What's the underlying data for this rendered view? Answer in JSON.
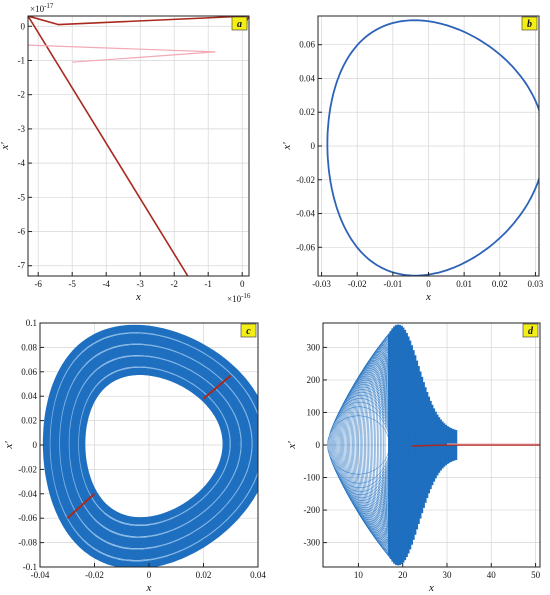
{
  "chart_data": [
    {
      "panel": "a",
      "type": "line",
      "xlabel": "x",
      "ylabel": "x'",
      "x_multiplier": "×10",
      "x_multiplier_exp": "-16",
      "y_multiplier": "×10",
      "y_multiplier_exp": "-17",
      "xlim": [
        -6.3,
        0.2
      ],
      "ylim": [
        -7.3,
        0.3
      ],
      "xticks": [
        -6,
        -5,
        -4,
        -3,
        -2,
        -1,
        0
      ],
      "yticks": [
        0,
        -1,
        -2,
        -3,
        -4,
        -5,
        -6,
        -7
      ],
      "xtick_labels": [
        "-6",
        "-5",
        "-4",
        "-3",
        "-2",
        "-1",
        "0"
      ],
      "ytick_labels": [
        "0",
        "-1",
        "-2",
        "-3",
        "-4",
        "-5",
        "-6",
        "-7"
      ],
      "grid": true,
      "series": [
        {
          "color": "#a82a1e",
          "points": [
            [
              -6.3,
              0.3
            ],
            [
              -1.6,
              -7.3
            ]
          ]
        },
        {
          "color": "#a82a1e",
          "points": [
            [
              -6.3,
              0.3
            ],
            [
              -5.4,
              0.05
            ],
            [
              0.2,
              0.3
            ],
            [
              0.05,
              0.0
            ],
            [
              -0.25,
              0.1
            ],
            [
              0.15,
              0.1
            ]
          ]
        },
        {
          "color": "#f3a9b6",
          "points": [
            [
              -6.3,
              -0.55
            ],
            [
              -0.8,
              -0.75
            ],
            [
              -5.0,
              -1.05
            ]
          ]
        }
      ]
    },
    {
      "panel": "b",
      "type": "line",
      "xlabel": "x",
      "ylabel": "x'",
      "xlim": [
        -0.031,
        0.031
      ],
      "ylim": [
        -0.077,
        0.077
      ],
      "xticks": [
        -0.03,
        -0.02,
        -0.01,
        0,
        0.01,
        0.02,
        0.03
      ],
      "yticks": [
        -0.06,
        -0.04,
        -0.02,
        0,
        0.02,
        0.04,
        0.06
      ],
      "xtick_labels": [
        "-0.03",
        "-0.02",
        "-0.01",
        "0",
        "0.01",
        "0.02",
        "0.03"
      ],
      "ytick_labels": [
        "-0.06",
        "-0.04",
        "-0.02",
        "0",
        "0.02",
        "0.04",
        "0.06"
      ],
      "grid": true,
      "series": [
        {
          "color": "#2d62b8",
          "shape": "closed-orbit",
          "x_amplitude": 0.0305,
          "y_amplitude": 0.0755
        }
      ]
    },
    {
      "panel": "c",
      "type": "line",
      "xlabel": "x",
      "ylabel": "x'",
      "xlim": [
        -0.04,
        0.04
      ],
      "ylim": [
        -0.1,
        0.1
      ],
      "xticks": [
        -0.04,
        -0.02,
        0,
        0.02,
        0.04
      ],
      "yticks": [
        0.1,
        0.08,
        0.06,
        0.04,
        0.02,
        0,
        -0.02,
        -0.04,
        -0.06,
        -0.08,
        -0.1
      ],
      "xtick_labels": [
        "-0.04",
        "-0.02",
        "0",
        "0.02",
        "0.04"
      ],
      "ytick_labels": [
        "0.1",
        "0.08",
        "0.06",
        "0.04",
        "0.02",
        "0",
        "-0.02",
        "-0.04",
        "-0.06",
        "-0.08",
        "-0.1"
      ],
      "grid": true,
      "series": [
        {
          "color": "#1f6fc0",
          "shape": "thick-orbit-band",
          "inner_x": 0.026,
          "inner_y": 0.06,
          "outer_x": 0.041,
          "outer_y": 0.098
        },
        {
          "color": "#a82a1e",
          "shape": "cross-section",
          "points": [
            [
              0.02,
              0.038
            ],
            [
              0.03,
              0.057
            ]
          ]
        },
        {
          "color": "#a82a1e",
          "shape": "cross-section",
          "points": [
            [
              -0.02,
              -0.04
            ],
            [
              -0.03,
              -0.06
            ]
          ]
        }
      ]
    },
    {
      "panel": "d",
      "type": "line",
      "xlabel": "x",
      "ylabel": "x'",
      "xlim": [
        2,
        51
      ],
      "ylim": [
        -375,
        375
      ],
      "xticks": [
        10,
        20,
        30,
        40,
        50
      ],
      "yticks": [
        300,
        200,
        100,
        0,
        -100,
        -200,
        -300
      ],
      "xtick_labels": [
        "10",
        "20",
        "30",
        "40",
        "50"
      ],
      "ytick_labels": [
        "300",
        "200",
        "100",
        "0",
        "-100",
        "-200",
        "-300"
      ],
      "grid": true,
      "series": [
        {
          "color": "#1f6fc0",
          "shape": "spiral-loops",
          "right_edge_x": 20,
          "left_min_x": 3,
          "y_max": 360
        },
        {
          "color": "#1f6fc0",
          "shape": "dense-core",
          "x_range": [
            17,
            32
          ]
        },
        {
          "color": "#a82a1e",
          "shape": "tail",
          "points": [
            [
              22,
              -3
            ],
            [
              30,
              0
            ],
            [
              51,
              0
            ]
          ]
        }
      ]
    }
  ]
}
